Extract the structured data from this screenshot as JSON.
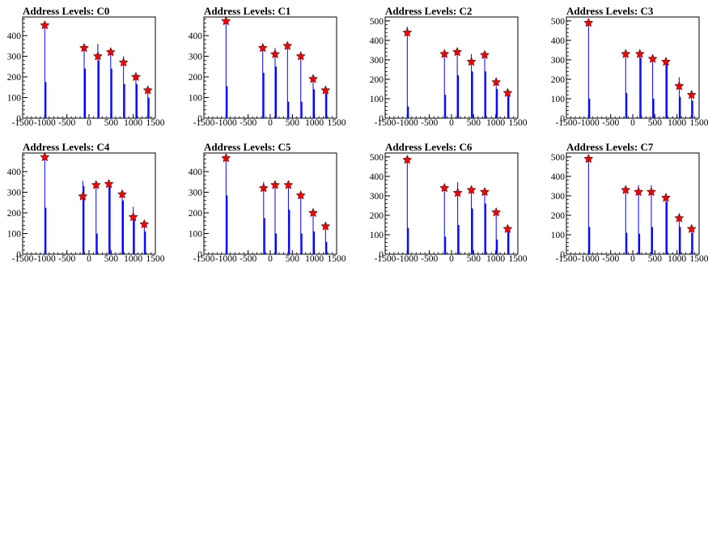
{
  "colors": {
    "histogram": "#0000ff",
    "marker": "#ff0000",
    "marker_edge": "#550000",
    "axis": "#000000"
  },
  "chart_data": [
    {
      "type": "histogram",
      "title": "Address Levels: C0",
      "xlim": [
        -1500,
        1500
      ],
      "ylim": [
        0,
        490
      ],
      "xticks": [
        "-1500",
        "-1000",
        "-500",
        "0",
        "500",
        "1000",
        "1500"
      ],
      "yticks": [
        "0",
        "100",
        "200",
        "300",
        "400"
      ],
      "bars": [
        [
          -1000,
          470
        ],
        [
          -1000,
          175
        ],
        [
          -110,
          340
        ],
        [
          -110,
          240
        ],
        [
          200,
          360
        ],
        [
          200,
          280
        ],
        [
          490,
          320
        ],
        [
          490,
          240
        ],
        [
          780,
          300
        ],
        [
          780,
          165
        ],
        [
          1060,
          210
        ],
        [
          1060,
          165
        ],
        [
          1330,
          150
        ],
        [
          1330,
          100
        ]
      ],
      "peaks": [
        [
          -1000,
          450
        ],
        [
          -110,
          340
        ],
        [
          200,
          300
        ],
        [
          490,
          320
        ],
        [
          780,
          270
        ],
        [
          1060,
          200
        ],
        [
          1330,
          135
        ]
      ]
    },
    {
      "type": "histogram",
      "title": "Address Levels: C1",
      "xlim": [
        -1500,
        1500
      ],
      "ylim": [
        0,
        490
      ],
      "xticks": [
        "-1500",
        "-1000",
        "-500",
        "0",
        "500",
        "1000",
        "1500"
      ],
      "yticks": [
        "0",
        "100",
        "200",
        "300",
        "400"
      ],
      "bars": [
        [
          -1000,
          470
        ],
        [
          -1000,
          155
        ],
        [
          -170,
          350
        ],
        [
          -170,
          220
        ],
        [
          110,
          340
        ],
        [
          110,
          250
        ],
        [
          390,
          350
        ],
        [
          390,
          80
        ],
        [
          690,
          310
        ],
        [
          690,
          80
        ],
        [
          970,
          195
        ],
        [
          970,
          140
        ],
        [
          1250,
          140
        ],
        [
          1250,
          120
        ]
      ],
      "peaks": [
        [
          -1000,
          470
        ],
        [
          -170,
          340
        ],
        [
          110,
          310
        ],
        [
          390,
          350
        ],
        [
          690,
          300
        ],
        [
          970,
          190
        ],
        [
          1250,
          135
        ]
      ]
    },
    {
      "type": "histogram",
      "title": "Address Levels: C2",
      "xlim": [
        -1500,
        1500
      ],
      "ylim": [
        0,
        520
      ],
      "xticks": [
        "-1500",
        "-1000",
        "-500",
        "0",
        "500",
        "1000",
        "1500"
      ],
      "yticks": [
        "0",
        "100",
        "200",
        "300",
        "400",
        "500"
      ],
      "bars": [
        [
          -1000,
          470
        ],
        [
          -1000,
          60
        ],
        [
          -160,
          340
        ],
        [
          -160,
          120
        ],
        [
          130,
          345
        ],
        [
          130,
          220
        ],
        [
          450,
          330
        ],
        [
          450,
          240
        ],
        [
          750,
          330
        ],
        [
          750,
          240
        ],
        [
          1010,
          200
        ],
        [
          1010,
          150
        ],
        [
          1270,
          140
        ],
        [
          1270,
          120
        ]
      ],
      "peaks": [
        [
          -1000,
          440
        ],
        [
          -160,
          330
        ],
        [
          130,
          340
        ],
        [
          450,
          290
        ],
        [
          750,
          325
        ],
        [
          1010,
          185
        ],
        [
          1270,
          130
        ]
      ]
    },
    {
      "type": "histogram",
      "title": "Address Levels: C3",
      "xlim": [
        -1500,
        1500
      ],
      "ylim": [
        0,
        520
      ],
      "xticks": [
        "-1500",
        "-1000",
        "-500",
        "0",
        "500",
        "1000",
        "1500"
      ],
      "yticks": [
        "0",
        "100",
        "200",
        "300",
        "400",
        "500"
      ],
      "bars": [
        [
          -1000,
          500
        ],
        [
          -1000,
          100
        ],
        [
          -160,
          340
        ],
        [
          -160,
          130
        ],
        [
          160,
          340
        ],
        [
          160,
          310
        ],
        [
          450,
          320
        ],
        [
          450,
          100
        ],
        [
          750,
          300
        ],
        [
          750,
          280
        ],
        [
          1050,
          210
        ],
        [
          1050,
          110
        ],
        [
          1330,
          120
        ],
        [
          1330,
          90
        ]
      ],
      "peaks": [
        [
          -1000,
          490
        ],
        [
          -160,
          330
        ],
        [
          160,
          330
        ],
        [
          450,
          305
        ],
        [
          750,
          290
        ],
        [
          1050,
          165
        ],
        [
          1330,
          120
        ]
      ]
    },
    {
      "type": "histogram",
      "title": "Address Levels: C4",
      "xlim": [
        -1500,
        1500
      ],
      "ylim": [
        0,
        490
      ],
      "xticks": [
        "-1500",
        "-1000",
        "-500",
        "0",
        "500",
        "1000",
        "1500"
      ],
      "yticks": [
        "0",
        "100",
        "200",
        "300",
        "400"
      ],
      "bars": [
        [
          -1000,
          470
        ],
        [
          -1000,
          225
        ],
        [
          -140,
          355
        ],
        [
          -140,
          330
        ],
        [
          160,
          345
        ],
        [
          160,
          100
        ],
        [
          450,
          345
        ],
        [
          450,
          330
        ],
        [
          750,
          300
        ],
        [
          750,
          260
        ],
        [
          1000,
          230
        ],
        [
          1000,
          180
        ],
        [
          1250,
          150
        ],
        [
          1250,
          110
        ]
      ],
      "peaks": [
        [
          -1000,
          470
        ],
        [
          -140,
          280
        ],
        [
          160,
          335
        ],
        [
          450,
          340
        ],
        [
          750,
          290
        ],
        [
          1000,
          180
        ],
        [
          1250,
          145
        ]
      ]
    },
    {
      "type": "histogram",
      "title": "Address Levels: C5",
      "xlim": [
        -1500,
        1500
      ],
      "ylim": [
        0,
        490
      ],
      "xticks": [
        "-1500",
        "-1000",
        "-500",
        "0",
        "500",
        "1000",
        "1500"
      ],
      "yticks": [
        "0",
        "100",
        "200",
        "300",
        "400"
      ],
      "bars": [
        [
          -1000,
          480
        ],
        [
          -1000,
          285
        ],
        [
          -150,
          350
        ],
        [
          -150,
          175
        ],
        [
          110,
          340
        ],
        [
          110,
          100
        ],
        [
          410,
          340
        ],
        [
          410,
          215
        ],
        [
          690,
          290
        ],
        [
          690,
          100
        ],
        [
          970,
          210
        ],
        [
          970,
          110
        ],
        [
          1250,
          140
        ],
        [
          1250,
          60
        ]
      ],
      "peaks": [
        [
          -1000,
          465
        ],
        [
          -150,
          320
        ],
        [
          110,
          335
        ],
        [
          410,
          335
        ],
        [
          690,
          285
        ],
        [
          970,
          200
        ],
        [
          1250,
          135
        ]
      ]
    },
    {
      "type": "histogram",
      "title": "Address Levels: C6",
      "xlim": [
        -1500,
        1500
      ],
      "ylim": [
        0,
        520
      ],
      "xticks": [
        "-1500",
        "-1000",
        "-500",
        "0",
        "500",
        "1000",
        "1500"
      ],
      "yticks": [
        "0",
        "100",
        "200",
        "300",
        "400",
        "500"
      ],
      "bars": [
        [
          -1000,
          500
        ],
        [
          -1000,
          135
        ],
        [
          -160,
          350
        ],
        [
          -160,
          90
        ],
        [
          140,
          370
        ],
        [
          140,
          150
        ],
        [
          450,
          330
        ],
        [
          450,
          235
        ],
        [
          750,
          335
        ],
        [
          750,
          260
        ],
        [
          1010,
          230
        ],
        [
          1010,
          75
        ],
        [
          1270,
          140
        ],
        [
          1270,
          125
        ]
      ],
      "peaks": [
        [
          -1000,
          485
        ],
        [
          -160,
          340
        ],
        [
          140,
          315
        ],
        [
          450,
          330
        ],
        [
          750,
          320
        ],
        [
          1010,
          215
        ],
        [
          1270,
          130
        ]
      ]
    },
    {
      "type": "histogram",
      "title": "Address Levels: C7",
      "xlim": [
        -1500,
        1500
      ],
      "ylim": [
        0,
        520
      ],
      "xticks": [
        "-1500",
        "-1000",
        "-500",
        "0",
        "500",
        "1000",
        "1500"
      ],
      "yticks": [
        "0",
        "100",
        "200",
        "300",
        "400",
        "500"
      ],
      "bars": [
        [
          -1000,
          500
        ],
        [
          -1000,
          140
        ],
        [
          -160,
          340
        ],
        [
          -160,
          110
        ],
        [
          130,
          355
        ],
        [
          130,
          105
        ],
        [
          420,
          355
        ],
        [
          420,
          140
        ],
        [
          750,
          300
        ],
        [
          750,
          270
        ],
        [
          1050,
          210
        ],
        [
          1050,
          140
        ],
        [
          1330,
          140
        ],
        [
          1330,
          110
        ]
      ],
      "peaks": [
        [
          -1000,
          490
        ],
        [
          -160,
          330
        ],
        [
          130,
          320
        ],
        [
          420,
          320
        ],
        [
          750,
          290
        ],
        [
          1050,
          185
        ],
        [
          1330,
          130
        ]
      ]
    }
  ]
}
